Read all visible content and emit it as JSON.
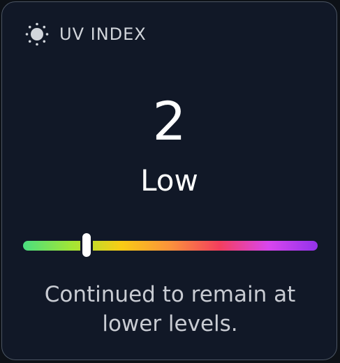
{
  "widget": {
    "title": "UV INDEX",
    "icon": "sun-icon",
    "value": "2",
    "level_label": "Low",
    "description": "Continued to remain at lower levels."
  },
  "scale": {
    "position_fraction": 0.215,
    "gradient_colors": [
      "#4ade80",
      "#a3e635",
      "#facc15",
      "#fb923c",
      "#f43f5e",
      "#d946ef",
      "#9333ea"
    ]
  },
  "colors": {
    "background": "#111827",
    "border": "#4b5563",
    "text_primary": "#ffffff",
    "text_secondary": "#c9ccd3"
  }
}
